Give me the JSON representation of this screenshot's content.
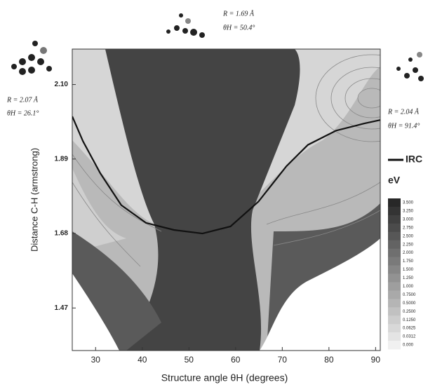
{
  "chart_data": {
    "type": "contour",
    "x_label": "Structure angle θH (degrees)",
    "y_label": "Distance C-H (armstrong)",
    "xlim": [
      25,
      91
    ],
    "xticks": [
      30,
      40,
      50,
      60,
      70,
      80,
      90
    ],
    "ylim": [
      1.35,
      2.2
    ],
    "yticks": [
      1.47,
      1.68,
      1.89,
      {
        "value": 2.1,
        "label": "2.10"
      }
    ],
    "series": [
      {
        "name": "IRC",
        "color": "#111111",
        "x": [
          25,
          27.3,
          31,
          35.5,
          40.8,
          46.8,
          52.9,
          58.9,
          64.9,
          70.9,
          75.5,
          81.5,
          87.5,
          91
        ],
        "y": [
          2.01,
          1.94,
          1.85,
          1.76,
          1.71,
          1.69,
          1.68,
          1.7,
          1.77,
          1.87,
          1.93,
          1.97,
          1.99,
          2.0
        ]
      }
    ],
    "colorbar_title": "eV",
    "colorbar_ticks": [
      {
        "value": 3.5,
        "label": "3.500"
      },
      {
        "value": 3.25,
        "label": "3.250"
      },
      {
        "value": 3,
        "label": "3.000"
      },
      {
        "value": 2.75,
        "label": "2.750"
      },
      {
        "value": 2.5,
        "label": "2.500"
      },
      {
        "value": 2.25,
        "label": "2.250"
      },
      {
        "value": 2,
        "label": "2.000"
      },
      {
        "value": 1.75,
        "label": "1.750"
      },
      {
        "value": 1.5,
        "label": "1.500"
      },
      {
        "value": 1.25,
        "label": "1.250"
      },
      {
        "value": 1,
        "label": "1.000"
      },
      {
        "value": 0.75,
        "label": "0.7500"
      },
      {
        "value": 0.5,
        "label": "0.5000"
      },
      {
        "value": 0.25,
        "label": "0.2500"
      },
      {
        "value": 0.125,
        "label": "0.1250"
      },
      {
        "value": 0.0625,
        "label": "0.0625"
      },
      {
        "value": 0.0312,
        "label": "0.0312"
      },
      {
        "value": 0,
        "label": "0.000"
      }
    ],
    "annotations": [
      {
        "r": "R = 2.07 Å",
        "theta": "θH = 26.1°"
      },
      {
        "r": "R = 1.69 Å",
        "theta": "θH = 50.4°"
      },
      {
        "r": "R = 2.04 Å",
        "theta": "θH = 91.4°"
      }
    ]
  }
}
